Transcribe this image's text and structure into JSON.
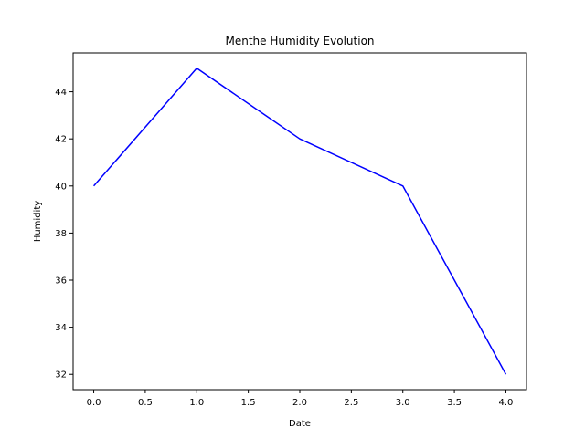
{
  "chart_data": {
    "type": "line",
    "title": "Menthe Humidity Evolution",
    "xlabel": "Date",
    "ylabel": "Humidity",
    "x": [
      0,
      1,
      2,
      3,
      4
    ],
    "series": [
      {
        "values": [
          40,
          45,
          42,
          40,
          32
        ],
        "color": "#0000ff"
      }
    ],
    "xlim": [
      -0.2,
      4.2
    ],
    "ylim": [
      31.35,
      45.65
    ],
    "xticks": [
      0.0,
      0.5,
      1.0,
      1.5,
      2.0,
      2.5,
      3.0,
      3.5,
      4.0
    ],
    "xtick_labels": [
      "0.0",
      "0.5",
      "1.0",
      "1.5",
      "2.0",
      "2.5",
      "3.0",
      "3.5",
      "4.0"
    ],
    "yticks": [
      32,
      34,
      36,
      38,
      40,
      42,
      44
    ],
    "ytick_labels": [
      "32",
      "34",
      "36",
      "38",
      "40",
      "42",
      "44"
    ],
    "grid": false,
    "legend": false
  }
}
